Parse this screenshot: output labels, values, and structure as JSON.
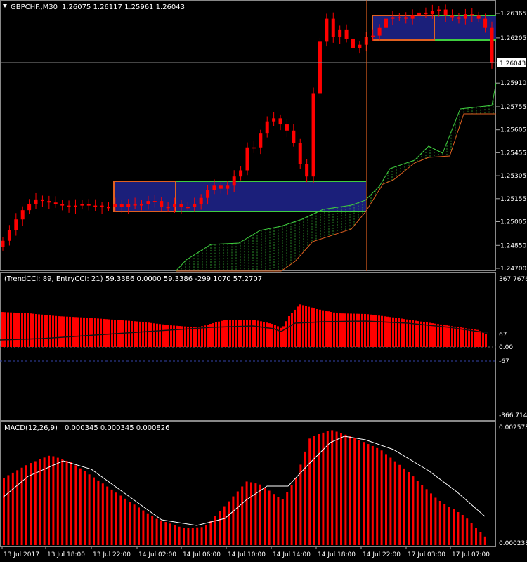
{
  "main_header": {
    "symbol": "GBPCHF.,M30",
    "ohlc": "1.26075 1.26117 1.25961 1.26043"
  },
  "colors": {
    "background": "#000000",
    "candle": "#ff0000",
    "box_fill": "#1b1f7a",
    "box_border": "#e06020",
    "box_line": "#3fce3f",
    "crosshair_v": "#e06020",
    "ichimoku_a": "#3fce3f",
    "ichimoku_b": "#e06020",
    "macd_bar": "#ff0000",
    "signal": "#ffffff"
  },
  "price_axis": {
    "labels": [
      "1.26365",
      "1.26205",
      "1.26043",
      "1.25910",
      "1.25755",
      "1.25605",
      "1.25455",
      "1.25305",
      "1.25155",
      "1.25005",
      "1.24850",
      "1.24700"
    ],
    "current_price": "1.26043"
  },
  "cci": {
    "label": "(TrendCCI: 89, EntryCCI: 21)",
    "values": "59.3386 0.0000 59.3386 -299.1070 57.2707",
    "axis_labels": [
      "367.7676",
      "67",
      "0.00",
      "-67",
      "-366.7148"
    ]
  },
  "macd": {
    "label": "MACD(12,26,9)",
    "values": "0.000345 0.000345 0.000826",
    "axis_labels": [
      "0.002578",
      "0.000238"
    ]
  },
  "time_axis": [
    "13 Jul 2017",
    "13 Jul 18:00",
    "13 Jul 22:00",
    "14 Jul 02:00",
    "14 Jul 06:00",
    "14 Jul 10:00",
    "14 Jul 14:00",
    "14 Jul 18:00",
    "14 Jul 22:00",
    "17 Jul 03:00",
    "17 Jul 07:00"
  ],
  "chart_data": {
    "type": "candlestick",
    "price_ylim": [
      1.247,
      1.264
    ],
    "candles_close_approx": [
      1.2488,
      1.2495,
      1.2502,
      1.2508,
      1.2512,
      1.2515,
      1.2514,
      1.2513,
      1.2512,
      1.2511,
      1.251,
      1.2511,
      1.2512,
      1.2511,
      1.2511,
      1.251,
      1.251,
      1.2512,
      1.251,
      1.2512,
      1.2511,
      1.2512,
      1.2514,
      1.2514,
      1.251,
      1.251,
      1.2512,
      1.251,
      1.251,
      1.2512,
      1.2516,
      1.2521,
      1.2524,
      1.2522,
      1.2524,
      1.253,
      1.2534,
      1.2549,
      1.2549,
      1.2558,
      1.2566,
      1.2568,
      1.2564,
      1.256,
      1.2552,
      1.2538,
      1.253,
      1.2584,
      1.2618,
      1.2633,
      1.2621,
      1.2626,
      1.262,
      1.2614,
      1.2616,
      1.2621,
      1.2622,
      1.2627,
      1.2633,
      1.2634,
      1.2634,
      1.2633,
      1.2635,
      1.2637,
      1.2636,
      1.2638,
      1.2639,
      1.2635,
      1.2634,
      1.2633,
      1.2636,
      1.2635,
      1.2633,
      1.2627,
      1.2604
    ]
  }
}
